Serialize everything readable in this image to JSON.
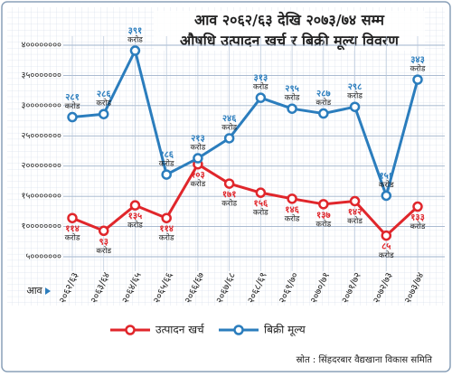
{
  "chart_data": {
    "type": "line",
    "title": "आव २०६२/६३ देखि २०७३/७४ सम्म",
    "subtitle": "औषधि उत्पादन खर्च र बिक्री मूल्य विवरण",
    "x_label": "आव",
    "categories": [
      "२०६२/६३",
      "२०६३/६४",
      "२०६४/६५",
      "२०६५/६६",
      "२०६६/६७",
      "२०६७/६८",
      "२०६८/६९",
      "२०६९/७०",
      "२०७०/७१",
      "२०७१/७२",
      "२०७२/७३",
      "२०७३/७४"
    ],
    "unit": "करोड",
    "series": [
      {
        "name": "उत्पादन खर्च",
        "color": "#e0262b",
        "values": [
          114000000,
          93000000,
          135000000,
          114000000,
          203000000,
          171000000,
          156000000,
          146000000,
          137000000,
          142000000,
          85000000,
          133000000
        ],
        "value_labels": [
          "११४",
          "९३",
          "१३५",
          "११४",
          "२०३",
          "१७१",
          "१५६",
          "१४६",
          "१३७",
          "१४२",
          "८५",
          "१३३"
        ]
      },
      {
        "name": "बिक्री मूल्य",
        "color": "#2b7dbd",
        "values": [
          281000000,
          286000000,
          391000000,
          186000000,
          213000000,
          246000000,
          313000000,
          295000000,
          287000000,
          298000000,
          151000000,
          343000000
        ],
        "value_labels": [
          "२८१",
          "२८६",
          "३९१",
          "१८६",
          "२१३",
          "२४६",
          "३१३",
          "२९५",
          "२८७",
          "२९८",
          "१५१",
          "३४३"
        ]
      }
    ],
    "ylim": [
      50000000,
      400000000
    ],
    "yticks": [
      {
        "value": 50000000,
        "label": "५०००००००"
      },
      {
        "value": 100000000,
        "label": "१००००००००"
      },
      {
        "value": 150000000,
        "label": "१५०००००००"
      },
      {
        "value": 200000000,
        "label": "२००००००००"
      },
      {
        "value": 250000000,
        "label": "२५०००००००"
      },
      {
        "value": 300000000,
        "label": "३००००००००"
      },
      {
        "value": 350000000,
        "label": "३५०००००००"
      },
      {
        "value": 400000000,
        "label": "४००००००००"
      }
    ],
    "grid": true,
    "legend": "bottom",
    "source": "स्रोत : सिंहदरबार वैद्यखाना विकास समिति"
  }
}
